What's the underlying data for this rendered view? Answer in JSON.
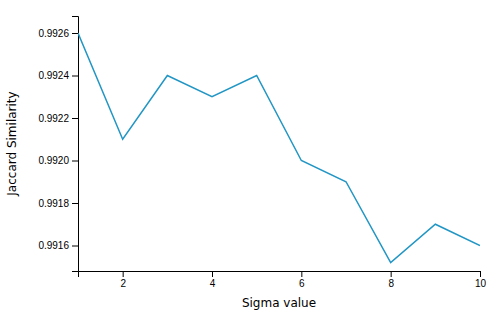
{
  "chart_data": {
    "type": "line",
    "x": [
      1,
      2,
      3,
      4,
      5,
      6,
      7,
      8,
      9,
      10
    ],
    "values": [
      0.9926,
      0.9921,
      0.9924,
      0.9923,
      0.9924,
      0.992,
      0.9919,
      0.99152,
      0.9917,
      0.9916
    ],
    "xlabel": "Sigma value",
    "ylabel": "Jaccard Similarity",
    "color": "#2196c4",
    "xlim": [
      1,
      10
    ],
    "ylim": [
      0.99148,
      0.99268
    ],
    "xticks": [
      2,
      4,
      6,
      8,
      10
    ],
    "yticks": [
      0.9916,
      0.9918,
      {
        "value": 0.992,
        "label": "0.9920"
      },
      0.9922,
      0.9924,
      0.9926
    ]
  }
}
